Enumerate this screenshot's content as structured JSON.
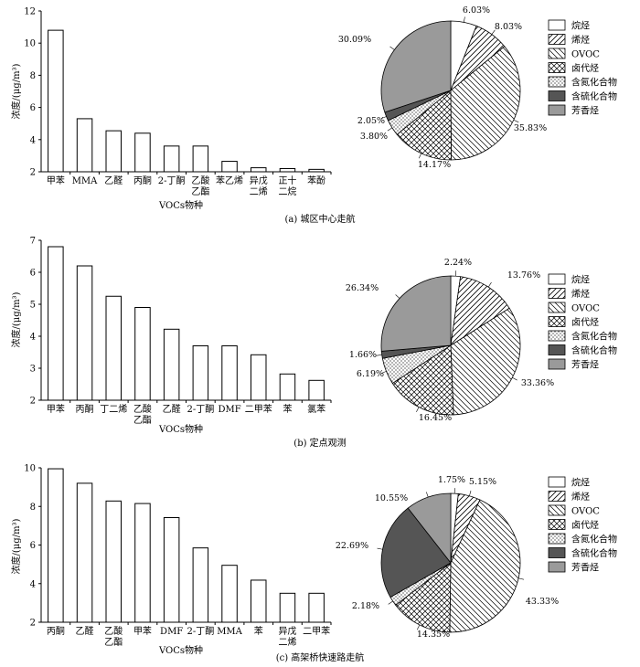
{
  "chart_data": [
    {
      "type": "bar",
      "panel": "a",
      "caption": "(a)  城区中心走航",
      "xlabel": "VOCs物种",
      "ylabel": "浓度/(μg/m³)",
      "ylim": [
        2,
        12
      ],
      "yticks": [
        2,
        4,
        6,
        8,
        10,
        12
      ],
      "categories": [
        [
          "甲苯"
        ],
        [
          "MMA"
        ],
        [
          "乙醛"
        ],
        [
          "丙酮"
        ],
        [
          "2-丁酮"
        ],
        [
          "乙酸",
          "乙酯"
        ],
        [
          "苯乙烯"
        ],
        [
          "异戊",
          "二烯"
        ],
        [
          "正十",
          "二烷"
        ],
        [
          "苯酚"
        ]
      ],
      "values": [
        10.8,
        5.3,
        4.55,
        4.4,
        3.6,
        3.6,
        2.65,
        2.25,
        2.2,
        2.15
      ],
      "grid": false
    },
    {
      "type": "pie",
      "panel": "a",
      "labels": [
        "烷烃",
        "烯烃",
        "OVOC",
        "卤代烃",
        "含氮化合物",
        "含硫化合物",
        "芳香烃"
      ],
      "percent_labels": [
        "6.03%",
        "8.03%",
        "35.83%",
        "14.17%",
        "3.80%",
        "2.05%",
        "30.09%"
      ],
      "values": [
        6.03,
        8.03,
        35.83,
        14.17,
        3.8,
        2.05,
        30.09
      ],
      "legend": "right"
    },
    {
      "type": "bar",
      "panel": "b",
      "caption": "(b)  定点观测",
      "xlabel": "VOCs物种",
      "ylabel": "浓度/(μg/m³)",
      "ylim": [
        2,
        7
      ],
      "yticks": [
        2,
        3,
        4,
        5,
        6,
        7
      ],
      "categories": [
        [
          "甲苯"
        ],
        [
          "丙酮"
        ],
        [
          "丁二烯"
        ],
        [
          "乙酸",
          "乙酯"
        ],
        [
          "乙醛"
        ],
        [
          "2-丁酮"
        ],
        [
          "DMF"
        ],
        [
          "二甲苯"
        ],
        [
          "苯"
        ],
        [
          "氯苯"
        ]
      ],
      "values": [
        6.8,
        6.2,
        5.25,
        4.9,
        4.22,
        3.7,
        3.7,
        3.42,
        2.82,
        2.62
      ],
      "grid": false
    },
    {
      "type": "pie",
      "panel": "b",
      "labels": [
        "烷烃",
        "烯烃",
        "OVOC",
        "卤代烃",
        "含氮化合物",
        "含硫化合物",
        "芳香烃"
      ],
      "percent_labels": [
        "2.24%",
        "13.76%",
        "33.36%",
        "16.45%",
        "6.19%",
        "1.66%",
        "26.34%"
      ],
      "values": [
        2.24,
        13.76,
        33.36,
        16.45,
        6.19,
        1.66,
        26.34
      ],
      "legend": "right"
    },
    {
      "type": "bar",
      "panel": "c",
      "caption": "(c)  高架桥快速路走航",
      "xlabel": "VOCs物种",
      "ylabel": "浓度/(μg/m³)",
      "ylim": [
        2,
        10
      ],
      "yticks": [
        2,
        4,
        6,
        8,
        10
      ],
      "categories": [
        [
          "丙酮"
        ],
        [
          "乙醛"
        ],
        [
          "乙酸",
          "乙酯"
        ],
        [
          "甲苯"
        ],
        [
          "DMF"
        ],
        [
          "2-丁酮"
        ],
        [
          "MMA"
        ],
        [
          "苯"
        ],
        [
          "异戊",
          "二烯"
        ],
        [
          "二甲苯"
        ]
      ],
      "values": [
        9.95,
        9.2,
        8.28,
        8.15,
        7.42,
        5.85,
        4.95,
        4.18,
        3.5,
        3.5
      ],
      "grid": false
    },
    {
      "type": "pie",
      "panel": "c",
      "labels": [
        "烷烃",
        "烯烃",
        "OVOC",
        "卤代烃",
        "含氮化合物",
        "含硫化合物",
        "芳香烃"
      ],
      "percent_labels": [
        "1.75%",
        "5.15%",
        "43.33%",
        "14.35%",
        "2.18%",
        "22.69%",
        "10.55%"
      ],
      "values": [
        1.75,
        5.15,
        43.33,
        14.35,
        2.18,
        22.69,
        10.55
      ],
      "legend": "right"
    }
  ]
}
